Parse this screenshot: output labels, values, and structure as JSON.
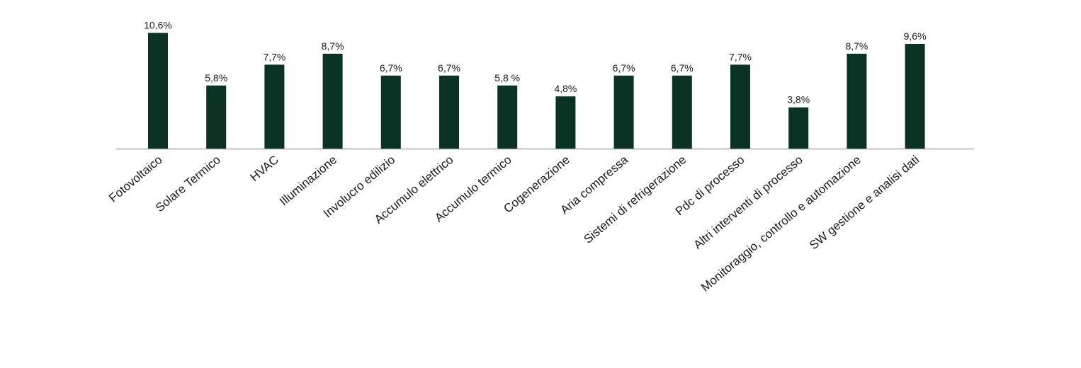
{
  "chart_data": {
    "type": "bar",
    "categories": [
      "Fotovoltaico",
      "Solare Termico",
      "HVAC",
      "Illuminazione",
      "Involucro edilizio",
      "Accumulo elettrico",
      "Accumulo termico",
      "Cogenerazione",
      "Aria compressa",
      "Sistemi di refrigerazione",
      "Pdc di processo",
      "Altri interventi di processo",
      "Monitoraggio, controllo e automazione",
      "SW gestione e analisi dati"
    ],
    "values": [
      10.6,
      5.8,
      7.7,
      8.7,
      6.7,
      6.7,
      5.8,
      4.8,
      6.7,
      6.7,
      7.7,
      3.8,
      8.7,
      9.6
    ],
    "value_labels": [
      "10,6%",
      "5,8%",
      "7,7%",
      "8,7%",
      "6,7%",
      "6,7%",
      "5,8 %",
      "4,8%",
      "6,7%",
      "6,7%",
      "7,7%",
      "3,8%",
      "8,7%",
      "9,6%"
    ],
    "title": "",
    "xlabel": "",
    "ylabel": "",
    "ylim": [
      0,
      10.6
    ],
    "grid": false,
    "legend": "none",
    "bar_color": "#0b3323",
    "axis_color": "#999999"
  }
}
